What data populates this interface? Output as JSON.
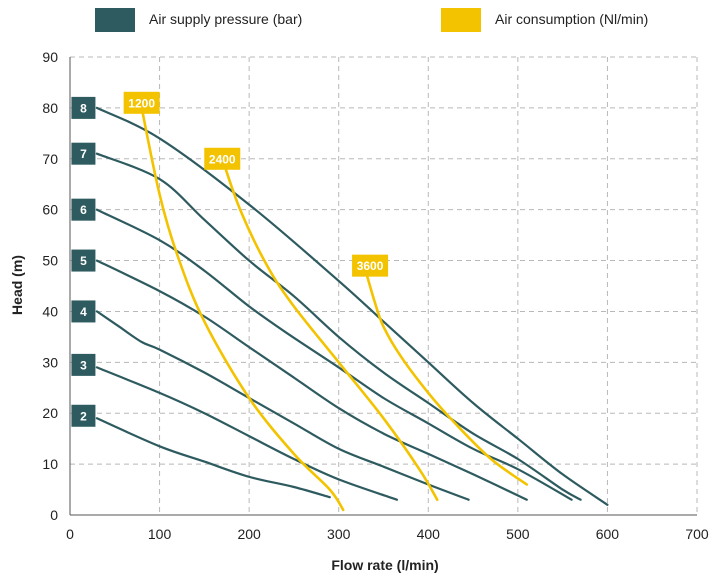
{
  "colors": {
    "pressure": "#2e5b5f",
    "consumption": "#f3c300",
    "grid": "#b8b8b8",
    "text": "#222222"
  },
  "chart_data": {
    "type": "line",
    "xlabel": "Flow rate (l/min)",
    "ylabel": "Head (m)",
    "xlim": [
      0,
      700
    ],
    "ylim": [
      0,
      90
    ],
    "xticks": [
      0,
      100,
      200,
      300,
      400,
      500,
      600,
      700
    ],
    "yticks": [
      0,
      10,
      20,
      30,
      40,
      50,
      60,
      70,
      80,
      90
    ],
    "grid": true,
    "legend_position": "top",
    "legend": [
      {
        "label": "Air supply pressure (bar)",
        "color_key": "pressure"
      },
      {
        "label": "Air consumption (Nl/min)",
        "color_key": "consumption"
      }
    ],
    "series": [
      {
        "name": "8",
        "group": "pressure",
        "x": [
          30,
          100,
          200,
          300,
          350,
          400,
          450,
          500,
          550,
          600
        ],
        "y": [
          80,
          74,
          61,
          46,
          38,
          30,
          22,
          15,
          8,
          2
        ]
      },
      {
        "name": "7",
        "group": "pressure",
        "x": [
          30,
          100,
          150,
          200,
          250,
          300,
          350,
          400,
          450,
          500,
          550,
          570
        ],
        "y": [
          71,
          66,
          58,
          50,
          43,
          35,
          28,
          22,
          16,
          11,
          5,
          3
        ]
      },
      {
        "name": "6",
        "group": "pressure",
        "x": [
          30,
          100,
          150,
          200,
          240,
          300,
          350,
          400,
          450,
          500,
          560
        ],
        "y": [
          60,
          54,
          48,
          41,
          36,
          29,
          23,
          18,
          13,
          9,
          3
        ]
      },
      {
        "name": "5",
        "group": "pressure",
        "x": [
          30,
          100,
          150,
          200,
          250,
          300,
          350,
          400,
          450,
          510
        ],
        "y": [
          50,
          44,
          39,
          33,
          27,
          21,
          16,
          12,
          8,
          3
        ]
      },
      {
        "name": "4",
        "group": "pressure",
        "x": [
          30,
          55,
          80,
          100,
          150,
          200,
          250,
          300,
          350,
          400,
          445
        ],
        "y": [
          40,
          37,
          34,
          32.5,
          28,
          23,
          18,
          13,
          9.5,
          6,
          3
        ]
      },
      {
        "name": "3",
        "group": "pressure",
        "x": [
          30,
          100,
          150,
          200,
          250,
          300,
          365
        ],
        "y": [
          29,
          24,
          20,
          15.5,
          11,
          7,
          3
        ]
      },
      {
        "name": "2",
        "group": "pressure",
        "x": [
          30,
          100,
          150,
          200,
          250,
          290
        ],
        "y": [
          19,
          13.5,
          10.5,
          7.5,
          5.5,
          3.5
        ]
      },
      {
        "name": "1200",
        "group": "consumption",
        "x": [
          80,
          100,
          120,
          150,
          200,
          250,
          290,
          305
        ],
        "y": [
          80,
          63,
          51,
          38,
          23,
          12,
          5,
          1
        ]
      },
      {
        "name": "2400",
        "group": "consumption",
        "x": [
          170,
          190,
          220,
          250,
          300,
          350,
          390,
          410
        ],
        "y": [
          70,
          60,
          49,
          41,
          30,
          19,
          9,
          3
        ]
      },
      {
        "name": "3600",
        "group": "consumption",
        "x": [
          330,
          340,
          350,
          370,
          400,
          430,
          470,
          510
        ],
        "y": [
          48,
          42,
          37,
          31,
          24,
          18,
          11,
          6
        ]
      }
    ],
    "badges": [
      {
        "text": "8",
        "x": 15,
        "y": 80,
        "group": "pressure"
      },
      {
        "text": "7",
        "x": 15,
        "y": 71,
        "group": "pressure"
      },
      {
        "text": "6",
        "x": 15,
        "y": 60,
        "group": "pressure"
      },
      {
        "text": "5",
        "x": 15,
        "y": 50,
        "group": "pressure"
      },
      {
        "text": "4",
        "x": 15,
        "y": 40,
        "group": "pressure"
      },
      {
        "text": "3",
        "x": 15,
        "y": 29.5,
        "group": "pressure"
      },
      {
        "text": "2",
        "x": 15,
        "y": 19.5,
        "group": "pressure"
      },
      {
        "text": "1200",
        "x": 80,
        "y": 81,
        "group": "consumption"
      },
      {
        "text": "2400",
        "x": 170,
        "y": 70,
        "group": "consumption"
      },
      {
        "text": "3600",
        "x": 335,
        "y": 49,
        "group": "consumption"
      }
    ]
  }
}
